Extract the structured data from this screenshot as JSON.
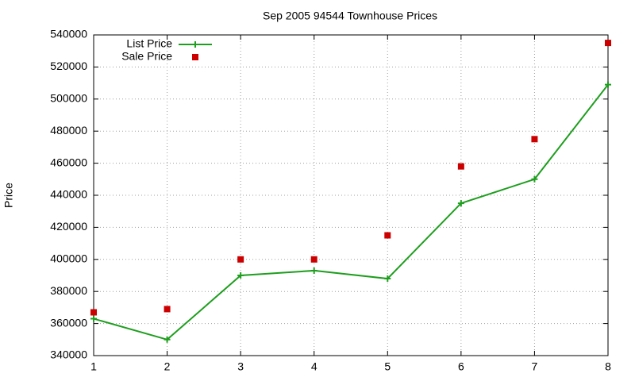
{
  "chart_data": {
    "type": "line",
    "title": "Sep 2005 94544 Townhouse Prices",
    "y_label": "Price",
    "x": [
      1,
      2,
      3,
      4,
      5,
      6,
      7,
      8
    ],
    "series": [
      {
        "name": "List Price",
        "color": "#1e9e1e",
        "style": "linespoints",
        "values": [
          363000,
          350000,
          390000,
          393000,
          388000,
          435000,
          450000,
          509000
        ]
      },
      {
        "name": "Sale Price",
        "color": "#cc0000",
        "style": "points",
        "values": [
          367000,
          369000,
          400000,
          400000,
          415000,
          458000,
          475000,
          535000
        ]
      }
    ],
    "xlim": [
      1,
      8
    ],
    "xticks": [
      1,
      2,
      3,
      4,
      5,
      6,
      7,
      8
    ],
    "ylim": [
      340000,
      540000
    ],
    "yticks": [
      340000,
      360000,
      380000,
      400000,
      420000,
      440000,
      460000,
      480000,
      500000,
      520000,
      540000
    ],
    "grid": true,
    "legend": "top-left"
  }
}
